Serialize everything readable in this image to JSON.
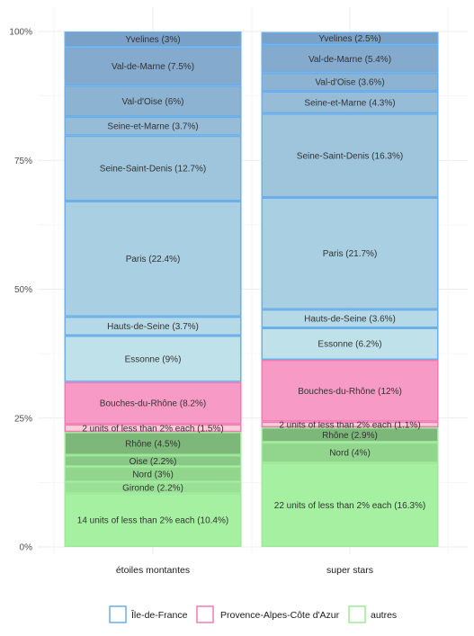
{
  "chart_data": {
    "type": "bar",
    "stacked": "percent",
    "categories": [
      "étoiles montantes",
      "super stars"
    ],
    "y_ticks": [
      "0%",
      "25%",
      "50%",
      "75%",
      "100%"
    ],
    "ylim": [
      0,
      100
    ],
    "grid": true,
    "legend": {
      "placement": "bottom",
      "entries": [
        {
          "name": "Île-de-France",
          "color": "#6aaeea"
        },
        {
          "name": "Provence-Alpes-Côte d'Azur",
          "color": "#f27ab4"
        },
        {
          "name": "autres",
          "color": "#9ee89a"
        }
      ]
    },
    "stacks": [
      {
        "category": "étoiles montantes",
        "segments": [
          {
            "label": "14 units of less than 2% each (10.4%)",
            "value": 10.4,
            "group": "autres",
            "fill": "#a6f0a2"
          },
          {
            "label": "Gironde (2.2%)",
            "value": 2.2,
            "group": "autres",
            "fill": "#9adf96"
          },
          {
            "label": "Nord (3%)",
            "value": 3.0,
            "group": "autres",
            "fill": "#92d68e"
          },
          {
            "label": "Oise (2.2%)",
            "value": 2.2,
            "group": "autres",
            "fill": "#88c985"
          },
          {
            "label": "Rhône (4.5%)",
            "value": 4.5,
            "group": "autres",
            "fill": "#7db87a"
          },
          {
            "label": "2 units of less than 2% each (1.5%)",
            "value": 1.5,
            "group": "Provence-Alpes-Côte d'Azur",
            "fill": "#f7cfd8"
          },
          {
            "label": "Bouches-du-Rhône (8.2%)",
            "value": 8.2,
            "group": "Provence-Alpes-Côte d'Azur",
            "fill": "#f79bc6"
          },
          {
            "label": "Essonne (9%)",
            "value": 9.0,
            "group": "Île-de-France",
            "fill": "#bfe2ea"
          },
          {
            "label": "Hauts-de-Seine (3.7%)",
            "value": 3.7,
            "group": "Île-de-France",
            "fill": "#b5d9e6"
          },
          {
            "label": "Paris (22.4%)",
            "value": 22.4,
            "group": "Île-de-France",
            "fill": "#a9cfe2"
          },
          {
            "label": "Seine-Saint-Denis (12.7%)",
            "value": 12.7,
            "group": "Île-de-France",
            "fill": "#9fc5dd"
          },
          {
            "label": "Seine-et-Marne (3.7%)",
            "value": 3.7,
            "group": "Île-de-France",
            "fill": "#96bcd8"
          },
          {
            "label": "Val-d'Oise (6%)",
            "value": 6.0,
            "group": "Île-de-France",
            "fill": "#8db3d3"
          },
          {
            "label": "Val-de-Marne (7.5%)",
            "value": 7.5,
            "group": "Île-de-France",
            "fill": "#84aacd"
          },
          {
            "label": "Yvelines (3%)",
            "value": 3.0,
            "group": "Île-de-France",
            "fill": "#7aa1c8"
          }
        ]
      },
      {
        "category": "super stars",
        "segments": [
          {
            "label": "22 units of less than 2% each (16.3%)",
            "value": 16.3,
            "group": "autres",
            "fill": "#a6f0a2"
          },
          {
            "label": "Nord (4%)",
            "value": 4.0,
            "group": "autres",
            "fill": "#92d68e"
          },
          {
            "label": "Rhône (2.9%)",
            "value": 2.9,
            "group": "autres",
            "fill": "#7db87a"
          },
          {
            "label": "2 units of less than 2% each (1.1%)",
            "value": 1.1,
            "group": "Provence-Alpes-Côte d'Azur",
            "fill": "#f7cfd8"
          },
          {
            "label": "Bouches-du-Rhône (12%)",
            "value": 12.0,
            "group": "Provence-Alpes-Côte d'Azur",
            "fill": "#f79bc6"
          },
          {
            "label": "Essonne (6.2%)",
            "value": 6.2,
            "group": "Île-de-France",
            "fill": "#bfe2ea"
          },
          {
            "label": "Hauts-de-Seine (3.6%)",
            "value": 3.6,
            "group": "Île-de-France",
            "fill": "#b5d9e6"
          },
          {
            "label": "Paris (21.7%)",
            "value": 21.7,
            "group": "Île-de-France",
            "fill": "#a9cfe2"
          },
          {
            "label": "Seine-Saint-Denis (16.3%)",
            "value": 16.3,
            "group": "Île-de-France",
            "fill": "#9fc5dd"
          },
          {
            "label": "Seine-et-Marne (4.3%)",
            "value": 4.3,
            "group": "Île-de-France",
            "fill": "#96bcd8"
          },
          {
            "label": "Val-d'Oise (3.6%)",
            "value": 3.6,
            "group": "Île-de-France",
            "fill": "#8db3d3"
          },
          {
            "label": "Val-de-Marne (5.4%)",
            "value": 5.4,
            "group": "Île-de-France",
            "fill": "#84aacd"
          },
          {
            "label": "Yvelines (2.5%)",
            "value": 2.5,
            "group": "Île-de-France",
            "fill": "#7aa1c8"
          }
        ]
      }
    ]
  }
}
